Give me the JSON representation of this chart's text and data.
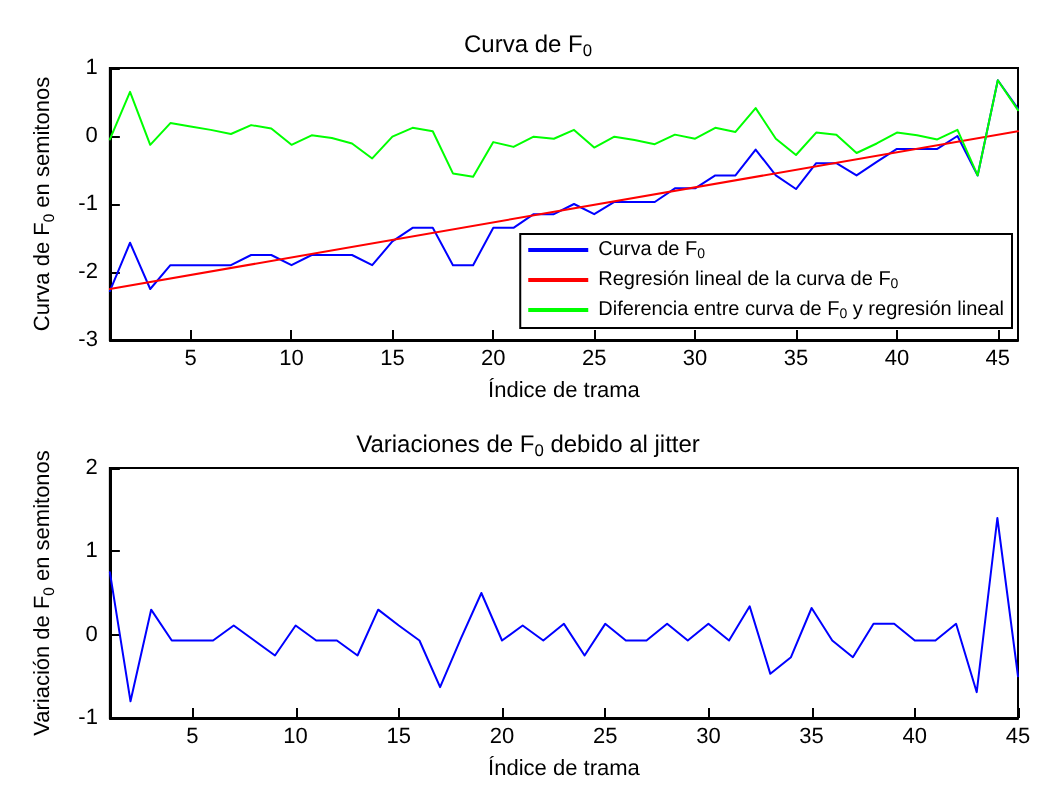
{
  "chart_data": [
    {
      "type": "line",
      "title": "Curva de F$_{0}$",
      "xlabel": "Índice de trama",
      "ylabel": "Curva de F$_{0}$ en semitonos",
      "xlim": [
        1,
        46
      ],
      "ylim": [
        -3,
        1
      ],
      "xticks": [
        5,
        10,
        15,
        20,
        25,
        30,
        35,
        40,
        45
      ],
      "yticks": [
        -3,
        -2,
        -1,
        0,
        1
      ],
      "grid": false,
      "legend": "bottom right",
      "marker": "none",
      "line_style": "solid",
      "x": [
        1,
        2,
        3,
        4,
        5,
        6,
        7,
        8,
        9,
        10,
        11,
        12,
        13,
        14,
        15,
        16,
        17,
        18,
        19,
        20,
        21,
        22,
        23,
        24,
        25,
        26,
        27,
        28,
        29,
        30,
        31,
        32,
        33,
        34,
        35,
        36,
        37,
        38,
        39,
        40,
        41,
        42,
        43,
        44,
        45,
        46
      ],
      "series": [
        {
          "name": "Curva de F$_{0}$",
          "color": "#0000ff",
          "values": [
            -2.28,
            -1.57,
            -2.25,
            -1.9,
            -1.9,
            -1.9,
            -1.9,
            -1.75,
            -1.75,
            -1.9,
            -1.75,
            -1.75,
            -1.75,
            -1.9,
            -1.55,
            -1.35,
            -1.35,
            -1.9,
            -1.9,
            -1.35,
            -1.35,
            -1.15,
            -1.15,
            -1.0,
            -1.15,
            -0.97,
            -0.97,
            -0.97,
            -0.77,
            -0.77,
            -0.58,
            -0.58,
            -0.2,
            -0.58,
            -0.78,
            -0.4,
            -0.4,
            -0.58,
            -0.38,
            -0.19,
            -0.19,
            -0.19,
            0.0,
            -0.58,
            0.82,
            0.4
          ]
        },
        {
          "name": "Regresión lineal de la curva de F$_{0}$",
          "color": "#ff0000",
          "x": [
            1,
            46
          ],
          "values": [
            -2.25,
            0.07
          ]
        },
        {
          "name": "Diferencia entre curva de F$_{0}$ y regresión lineal",
          "color": "#00ff00",
          "values": [
            -0.05,
            0.65,
            -0.13,
            0.19,
            0.14,
            0.09,
            0.03,
            0.16,
            0.11,
            -0.13,
            0.01,
            -0.03,
            -0.11,
            -0.33,
            -0.01,
            0.12,
            0.07,
            -0.55,
            -0.6,
            -0.09,
            -0.16,
            -0.01,
            -0.04,
            0.09,
            -0.17,
            -0.01,
            -0.06,
            -0.12,
            0.02,
            -0.04,
            0.12,
            0.06,
            0.41,
            -0.04,
            -0.28,
            0.05,
            0.02,
            -0.25,
            -0.11,
            0.05,
            0.01,
            -0.05,
            0.09,
            -0.58,
            0.82,
            0.38
          ]
        }
      ]
    },
    {
      "type": "line",
      "title": "Variaciones de F$_{0}$ debido al jitter",
      "xlabel": "Índice de trama",
      "ylabel": "Variación de F$_{0}$ en semitonos",
      "xlim": [
        1,
        45
      ],
      "ylim": [
        -1,
        2
      ],
      "xticks": [
        5,
        10,
        15,
        20,
        25,
        30,
        35,
        40,
        45
      ],
      "yticks": [
        -1,
        0,
        1,
        2
      ],
      "grid": false,
      "legend": false,
      "marker": "none",
      "line_style": "solid",
      "x": [
        1,
        2,
        3,
        4,
        5,
        6,
        7,
        8,
        9,
        10,
        11,
        12,
        13,
        14,
        15,
        16,
        17,
        18,
        19,
        20,
        21,
        22,
        23,
        24,
        25,
        26,
        27,
        28,
        29,
        30,
        31,
        32,
        33,
        34,
        35,
        36,
        37,
        38,
        39,
        40,
        41,
        42,
        43,
        44,
        45
      ],
      "series": [
        {
          "color": "#0000ff",
          "values": [
            0.75,
            -0.8,
            0.3,
            -0.07,
            -0.07,
            -0.07,
            0.11,
            -0.07,
            -0.25,
            0.11,
            -0.07,
            -0.07,
            -0.25,
            0.3,
            0.11,
            -0.07,
            -0.63,
            -0.05,
            0.5,
            -0.07,
            0.11,
            -0.07,
            0.13,
            -0.25,
            0.13,
            -0.07,
            -0.07,
            0.13,
            -0.07,
            0.13,
            -0.07,
            0.34,
            -0.47,
            -0.27,
            0.32,
            -0.07,
            -0.27,
            0.13,
            0.13,
            -0.07,
            -0.07,
            0.13,
            -0.69,
            1.4,
            -0.5
          ]
        }
      ]
    }
  ]
}
